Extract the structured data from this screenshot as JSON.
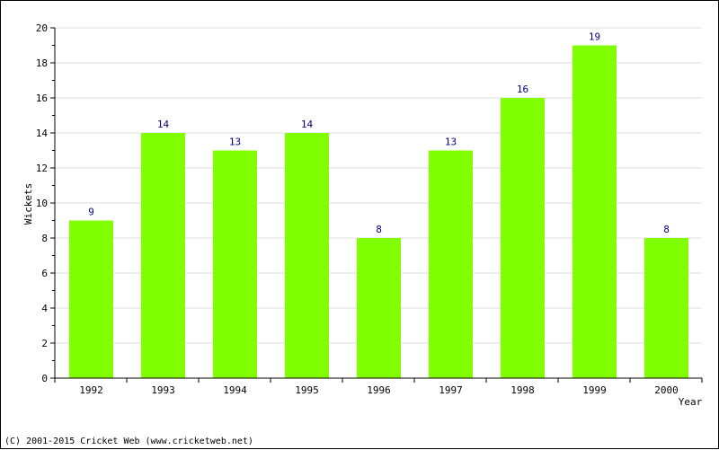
{
  "chart_data": {
    "type": "bar",
    "categories": [
      "1992",
      "1993",
      "1994",
      "1995",
      "1996",
      "1997",
      "1998",
      "1999",
      "2000"
    ],
    "values": [
      9,
      14,
      13,
      14,
      8,
      13,
      16,
      19,
      8
    ],
    "title": "",
    "xlabel": "Year",
    "ylabel": "Wickets",
    "ylim": [
      0,
      20
    ],
    "y_ticks": [
      "0",
      "2",
      "4",
      "6",
      "8",
      "10",
      "12",
      "14",
      "16",
      "18",
      "20"
    ],
    "grid": true,
    "data_labels": true,
    "colors": {
      "bar": "#80ff00",
      "data_label": "#000080",
      "grid": "#dddddd",
      "axis": "#000000",
      "text": "#000000"
    }
  },
  "footer": {
    "credit": "(C) 2001-2015 Cricket Web (www.cricketweb.net)"
  }
}
